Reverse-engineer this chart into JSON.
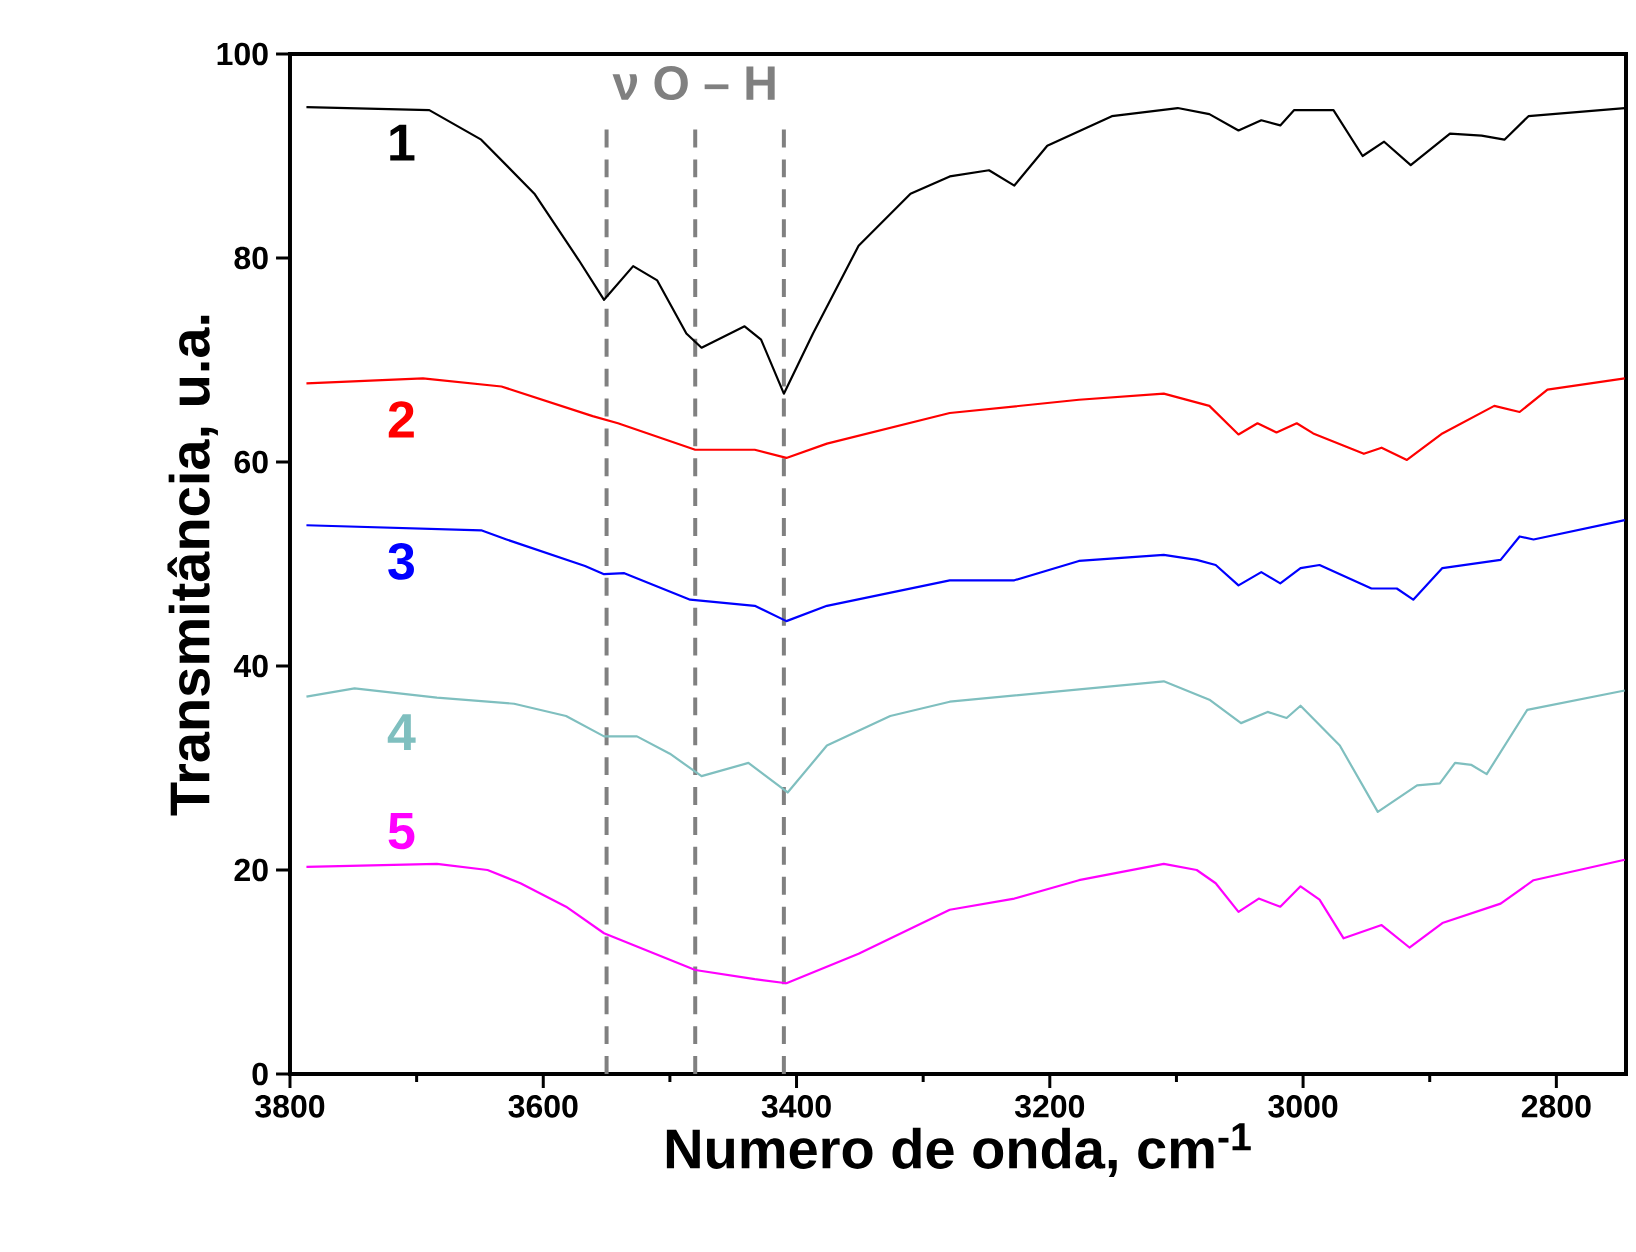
{
  "chart_data": {
    "type": "line",
    "xlabel": "Numero de onda, cm$^{-1}$",
    "ylabel": "Transmitância, u.a.",
    "annotations": [
      "ν O – H"
    ],
    "xlim": [
      3800,
      2745
    ],
    "ylim": [
      0,
      100
    ],
    "xticks": [
      3800,
      {
        "value": 3700,
        "label": null
      },
      3600,
      {
        "value": 3500,
        "label": null
      },
      3400,
      {
        "value": 3300,
        "label": null
      },
      3200,
      {
        "value": 3100,
        "label": null
      },
      3000,
      {
        "value": 2900,
        "label": null
      },
      2800
    ],
    "yticks": [
      0,
      20,
      40,
      60,
      80,
      100
    ],
    "grid": false,
    "legend": false,
    "marker": "none",
    "line_style": "solid",
    "ref_lines": [
      {
        "axis": "x",
        "value": 3550,
        "color": "#808080",
        "line_style": "dashed"
      },
      {
        "axis": "x",
        "value": 3480,
        "color": "#808080",
        "line_style": "dashed"
      },
      {
        "axis": "x",
        "value": 3410,
        "color": "#808080",
        "line_style": "dashed"
      }
    ],
    "series": [
      {
        "name": "1",
        "color": "#000000",
        "x": [
          3787,
          3690,
          3649,
          3607,
          3572,
          3552,
          3529,
          3510,
          3487,
          3475,
          3441,
          3428,
          3410,
          3387,
          3351,
          3310,
          3279,
          3248,
          3228,
          3202,
          3151,
          3099,
          3074,
          3051,
          3033,
          3018,
          3007,
          2976,
          2953,
          2936,
          2915,
          2884,
          2859,
          2841,
          2822,
          2746
        ],
        "values": [
          94.8,
          94.5,
          91.6,
          86.3,
          79.8,
          75.9,
          79.2,
          77.8,
          72.6,
          71.2,
          73.3,
          72.0,
          66.7,
          72.6,
          81.2,
          86.3,
          88.0,
          88.6,
          87.1,
          91.0,
          93.9,
          94.7,
          94.1,
          92.5,
          93.5,
          93.0,
          94.5,
          94.5,
          90.0,
          91.4,
          89.1,
          92.2,
          92.0,
          91.6,
          93.9,
          94.7
        ]
      },
      {
        "name": "2",
        "color": "#ff0000",
        "x": [
          3787,
          3695,
          3633,
          3561,
          3541,
          3480,
          3433,
          3408,
          3376,
          3279,
          3177,
          3110,
          3074,
          3051,
          3036,
          3021,
          3005,
          2992,
          2952,
          2938,
          2918,
          2890,
          2849,
          2829,
          2807,
          2746
        ],
        "values": [
          67.7,
          68.2,
          67.4,
          64.5,
          63.8,
          61.2,
          61.2,
          60.4,
          61.8,
          64.8,
          66.1,
          66.7,
          65.5,
          62.7,
          63.8,
          62.9,
          63.8,
          62.8,
          60.8,
          61.4,
          60.2,
          62.8,
          65.5,
          64.9,
          67.1,
          68.2
        ]
      },
      {
        "name": "3",
        "color": "#0000ff",
        "x": [
          3787,
          3649,
          3629,
          3567,
          3552,
          3536,
          3484,
          3433,
          3408,
          3376,
          3279,
          3228,
          3177,
          3110,
          3084,
          3069,
          3051,
          3033,
          3018,
          3002,
          2987,
          2946,
          2926,
          2913,
          2890,
          2844,
          2829,
          2818,
          2746
        ],
        "values": [
          53.8,
          53.3,
          52.4,
          49.8,
          49.0,
          49.1,
          46.5,
          45.9,
          44.4,
          45.9,
          48.4,
          48.4,
          50.3,
          50.9,
          50.4,
          49.9,
          47.9,
          49.2,
          48.1,
          49.6,
          49.9,
          47.6,
          47.6,
          46.5,
          49.6,
          50.4,
          52.7,
          52.4,
          54.3
        ]
      },
      {
        "name": "4",
        "color": "#7fbfbf",
        "x": [
          3787,
          3749,
          3684,
          3623,
          3582,
          3552,
          3526,
          3500,
          3475,
          3438,
          3407,
          3376,
          3326,
          3279,
          3110,
          3074,
          3049,
          3028,
          3013,
          3002,
          2971,
          2941,
          2910,
          2892,
          2880,
          2867,
          2855,
          2823,
          2746
        ],
        "values": [
          37.0,
          37.8,
          36.9,
          36.3,
          35.1,
          33.1,
          33.1,
          31.4,
          29.2,
          30.5,
          27.6,
          32.2,
          35.1,
          36.5,
          38.5,
          36.7,
          34.4,
          35.5,
          34.9,
          36.1,
          32.2,
          25.7,
          28.3,
          28.5,
          30.5,
          30.3,
          29.4,
          35.7,
          37.6
        ]
      },
      {
        "name": "5",
        "color": "#ff00ff",
        "x": [
          3787,
          3684,
          3644,
          3618,
          3582,
          3552,
          3480,
          3433,
          3408,
          3351,
          3279,
          3228,
          3177,
          3110,
          3084,
          3069,
          3051,
          3035,
          3018,
          3002,
          2987,
          2968,
          2938,
          2916,
          2890,
          2844,
          2818,
          2746
        ],
        "values": [
          20.3,
          20.6,
          20.0,
          18.7,
          16.4,
          13.8,
          10.2,
          9.3,
          8.9,
          11.8,
          16.1,
          17.2,
          19.0,
          20.6,
          20.0,
          18.7,
          15.9,
          17.2,
          16.4,
          18.4,
          17.1,
          13.3,
          14.6,
          12.4,
          14.8,
          16.7,
          19.0,
          21.0
        ]
      }
    ]
  }
}
